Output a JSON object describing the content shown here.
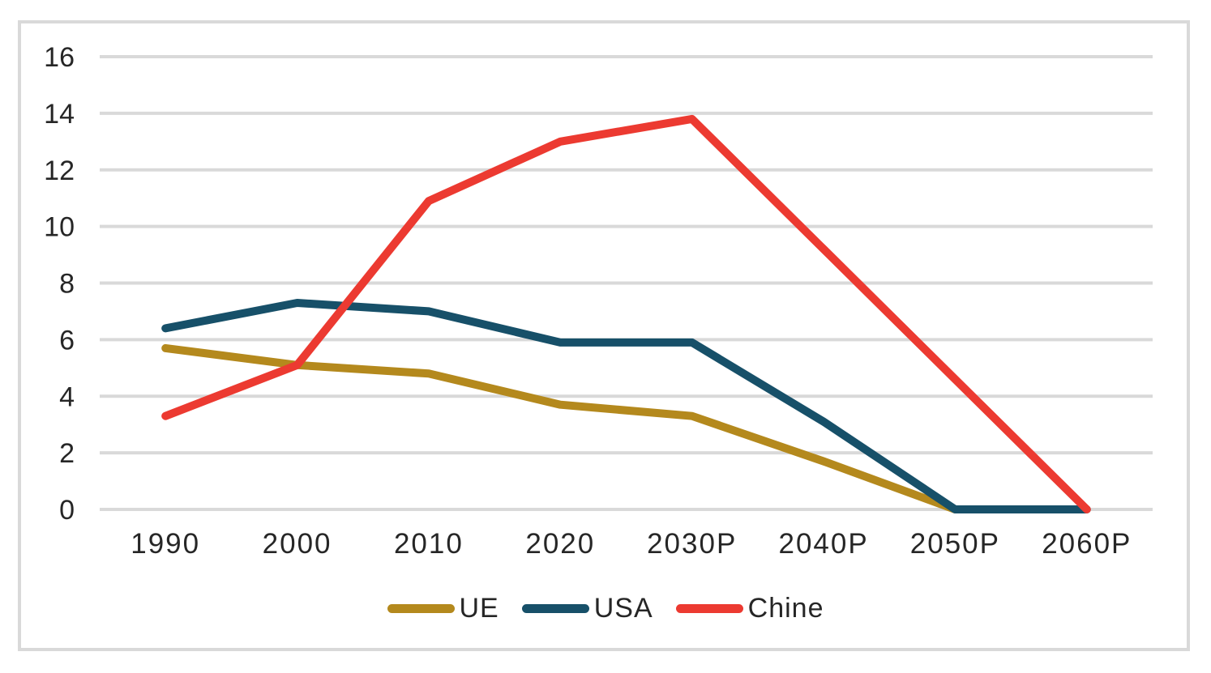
{
  "chart_data": {
    "type": "line",
    "title": "",
    "categories": [
      "1990",
      "2000",
      "2010",
      "2020",
      "2030P",
      "2040P",
      "2050P",
      "2060P"
    ],
    "series": [
      {
        "name": "UE",
        "color": "#B4891D",
        "values": [
          5.7,
          5.1,
          4.8,
          3.7,
          3.3,
          1.7,
          0,
          null
        ]
      },
      {
        "name": "USA",
        "color": "#175069",
        "values": [
          6.4,
          7.3,
          7.0,
          5.9,
          5.9,
          3.1,
          0,
          0
        ]
      },
      {
        "name": "Chine",
        "color": "#EC3A31",
        "values": [
          3.3,
          5.1,
          10.9,
          13.0,
          13.8,
          9.2,
          4.6,
          0
        ]
      }
    ],
    "ylim": [
      0,
      16
    ],
    "yticks": [
      0,
      2,
      4,
      6,
      8,
      10,
      12,
      14,
      16
    ],
    "grid": "horizontal-only",
    "legend_position": "bottom-center",
    "line_width": 10
  },
  "styles": {
    "background_color": "#FFFFFF",
    "frame_border_color": "#D9D9D9",
    "grid_color": "#D9D9D9",
    "text_color": "#262626"
  }
}
